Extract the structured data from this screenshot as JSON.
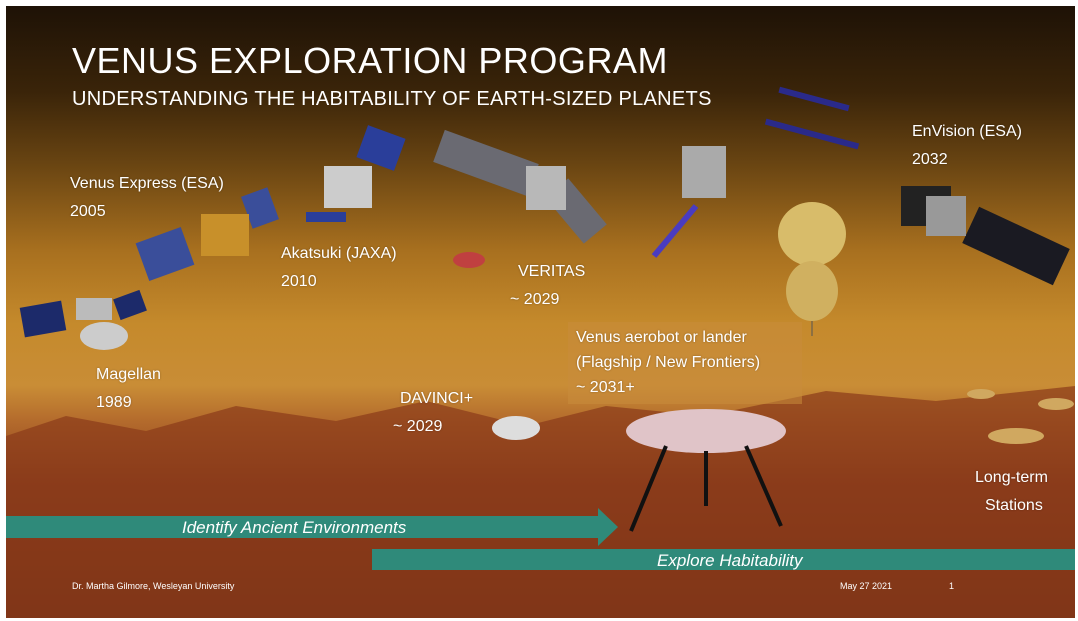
{
  "header": {
    "title": "VENUS EXPLORATION PROGRAM",
    "subtitle": "UNDERSTANDING THE HABITABILITY OF EARTH-SIZED PLANETS"
  },
  "missions": [
    {
      "lines": [
        "Venus Express (ESA)",
        "2005"
      ]
    },
    {
      "lines": [
        "Akatsuki (JAXA)",
        "2010"
      ]
    },
    {
      "lines": [
        "VERITAS",
        "~ 2029"
      ]
    },
    {
      "lines": [
        "EnVision (ESA)",
        "2032"
      ]
    },
    {
      "lines": [
        "Magellan",
        "1989"
      ]
    },
    {
      "lines": [
        "DAVINCI+",
        "~ 2029"
      ]
    },
    {
      "lines": [
        "Venus aerobot or lander",
        "(Flagship / New Frontiers)",
        "~ 2031+"
      ]
    },
    {
      "lines": [
        "Long-term",
        "Stations"
      ]
    }
  ],
  "arrows": [
    "Identify Ancient Environments",
    "Explore Habitability"
  ],
  "footer": {
    "author": "Dr. Martha  Gilmore, Wesleyan University",
    "date": "May 27 2021",
    "page": "1"
  }
}
